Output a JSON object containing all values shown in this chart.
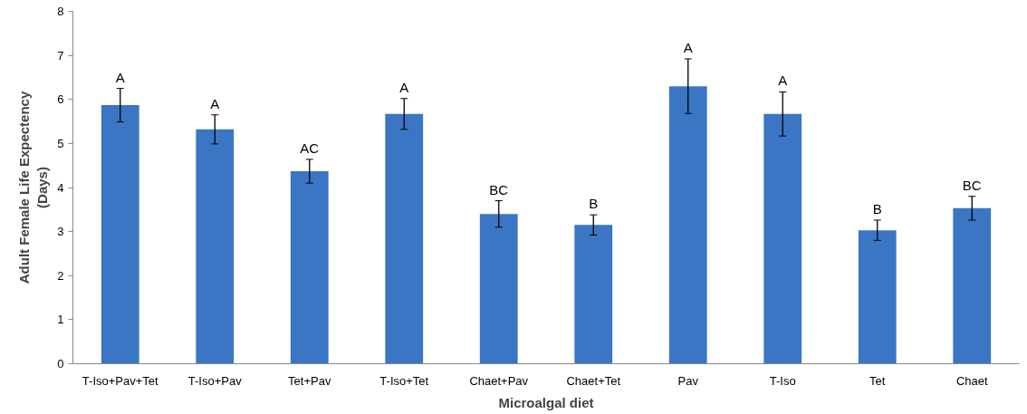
{
  "chart_data": {
    "type": "bar",
    "xlabel": "Microalgal diet",
    "ylabel": "Adult Female Life Expectency\n(Days)",
    "categories": [
      "T-Iso+Pav+Tet",
      "T-Iso+Pav",
      "Tet+Pav",
      "T-Iso+Tet",
      "Chaet+Pav",
      "Chaet+Tet",
      "Pav",
      "T-Iso",
      "Tet",
      "Chaet"
    ],
    "values": [
      5.87,
      5.32,
      4.37,
      5.67,
      3.4,
      3.15,
      6.3,
      5.67,
      3.03,
      3.53
    ],
    "errors": [
      0.38,
      0.33,
      0.27,
      0.35,
      0.3,
      0.23,
      0.62,
      0.5,
      0.23,
      0.27
    ],
    "color": "#3a76c4",
    "ylim": [
      0,
      8
    ],
    "yticks": [
      0,
      1,
      2,
      3,
      4,
      5,
      6,
      7,
      8
    ],
    "grid": false,
    "annotations": [
      {
        "text": "A",
        "x": "T-Iso+Pav+Tet",
        "y": 6.25
      },
      {
        "text": "A",
        "x": "T-Iso+Pav",
        "y": 5.65
      },
      {
        "text": "AC",
        "x": "Tet+Pav",
        "y": 4.64
      },
      {
        "text": "A",
        "x": "T-Iso+Tet",
        "y": 6.02
      },
      {
        "text": "BC",
        "x": "Chaet+Pav",
        "y": 3.7
      },
      {
        "text": "B",
        "x": "Chaet+Tet",
        "y": 3.38
      },
      {
        "text": "A",
        "x": "Pav",
        "y": 6.92
      },
      {
        "text": "A",
        "x": "T-Iso",
        "y": 6.17
      },
      {
        "text": "B",
        "x": "Tet",
        "y": 3.26
      },
      {
        "text": "BC",
        "x": "Chaet",
        "y": 3.8
      }
    ]
  }
}
